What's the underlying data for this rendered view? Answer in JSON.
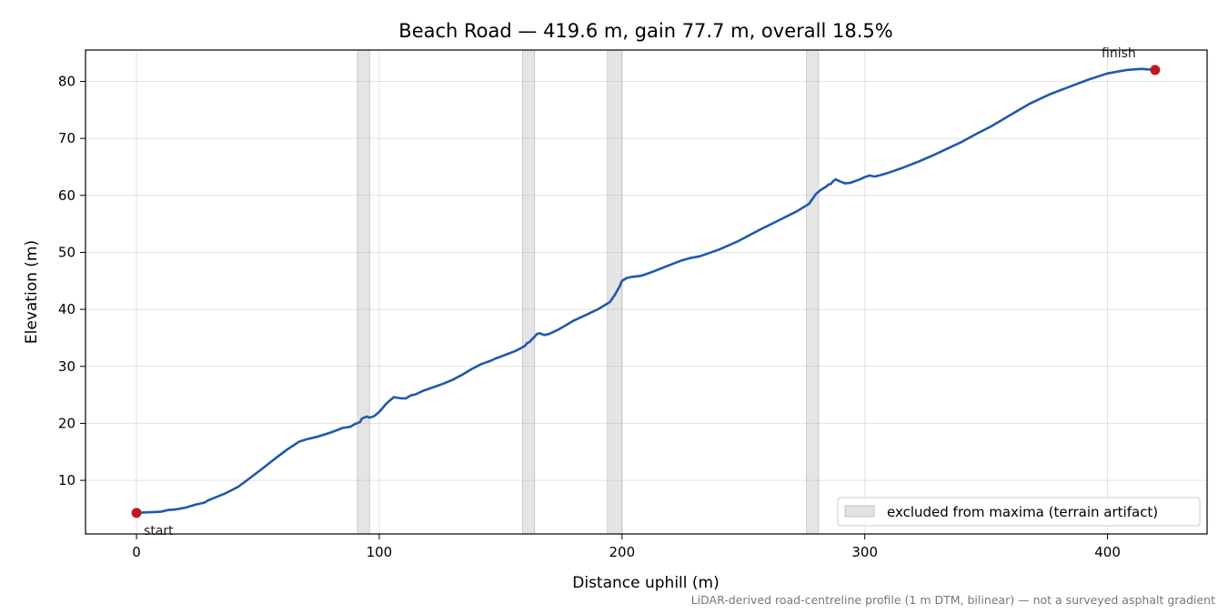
{
  "chart_data": {
    "type": "line",
    "title": "Beach Road — 419.6 m, gain 77.7 m, overall 18.5%",
    "xlabel": "Distance uphill (m)",
    "ylabel": "Elevation (m)",
    "xlim": [
      -21,
      441
    ],
    "ylim": [
      0.6,
      85.5
    ],
    "xticks": [
      0,
      100,
      200,
      300,
      400
    ],
    "yticks": [
      10,
      20,
      30,
      40,
      50,
      60,
      70,
      80
    ],
    "grid": true,
    "series": [
      {
        "color": "#1f5aad",
        "x": [
          0,
          5,
          10,
          13,
          16,
          20,
          24,
          28,
          30,
          33,
          37,
          42,
          47,
          52,
          57,
          62,
          67,
          70,
          75,
          80,
          85,
          88,
          90,
          92,
          93,
          95,
          96,
          98,
          100,
          103,
          106,
          109,
          111,
          113,
          115,
          118,
          122,
          126,
          130,
          134,
          138,
          142,
          146,
          148,
          150,
          153,
          156,
          158,
          160,
          161,
          162,
          163,
          164,
          165,
          166,
          168,
          170,
          172,
          174,
          176,
          180,
          185,
          190,
          195,
          197,
          199,
          200,
          202,
          204,
          206,
          208,
          212,
          218,
          224,
          228,
          232,
          240,
          248,
          256,
          264,
          272,
          277,
          278,
          280,
          282,
          284,
          285,
          286,
          287,
          288,
          290,
          292,
          294,
          296,
          298,
          300,
          302,
          304,
          306,
          310,
          316,
          322,
          328,
          334,
          340,
          346,
          352,
          360,
          368,
          376,
          384,
          392,
          400,
          408,
          414,
          419.6
        ],
        "y": [
          4.3,
          4.4,
          4.5,
          4.8,
          4.9,
          5.2,
          5.7,
          6.1,
          6.6,
          7.1,
          7.8,
          8.9,
          10.5,
          12.1,
          13.8,
          15.4,
          16.8,
          17.2,
          17.7,
          18.4,
          19.2,
          19.4,
          19.9,
          20.2,
          20.9,
          21.2,
          21.0,
          21.3,
          22.0,
          23.5,
          24.6,
          24.4,
          24.4,
          24.9,
          25.1,
          25.7,
          26.3,
          26.9,
          27.6,
          28.5,
          29.5,
          30.4,
          31.0,
          31.4,
          31.7,
          32.2,
          32.7,
          33.1,
          33.6,
          34.1,
          34.3,
          34.8,
          35.2,
          35.7,
          35.8,
          35.5,
          35.7,
          36.1,
          36.5,
          37.0,
          38.0,
          39.0,
          40.0,
          41.3,
          42.5,
          44.0,
          45.0,
          45.5,
          45.7,
          45.8,
          45.9,
          46.5,
          47.5,
          48.5,
          49.0,
          49.3,
          50.5,
          52.0,
          53.8,
          55.5,
          57.2,
          58.5,
          59.1,
          60.3,
          61.0,
          61.5,
          61.9,
          62.0,
          62.5,
          62.8,
          62.4,
          62.1,
          62.2,
          62.5,
          62.8,
          63.2,
          63.5,
          63.3,
          63.5,
          64.0,
          64.9,
          65.9,
          67.0,
          68.2,
          69.4,
          70.8,
          72.1,
          74.1,
          76.1,
          77.7,
          79.0,
          80.3,
          81.4,
          82.0,
          82.2,
          82.0
        ]
      }
    ],
    "excluded_bands": [
      [
        91,
        96
      ],
      [
        159,
        164
      ],
      [
        194,
        200
      ],
      [
        276,
        281
      ]
    ],
    "markers": [
      {
        "label": "start",
        "x": 0,
        "y": 4.3,
        "color": "#c0181f"
      },
      {
        "label": "finish",
        "x": 419.6,
        "y": 82.0,
        "color": "#c0181f"
      }
    ],
    "legend": {
      "position": "bottom-right",
      "label": "excluded from maxima (terrain artifact)"
    },
    "footnote": "LiDAR-derived road-centreline profile (1 m DTM, bilinear) — not a surveyed asphalt gradient"
  }
}
